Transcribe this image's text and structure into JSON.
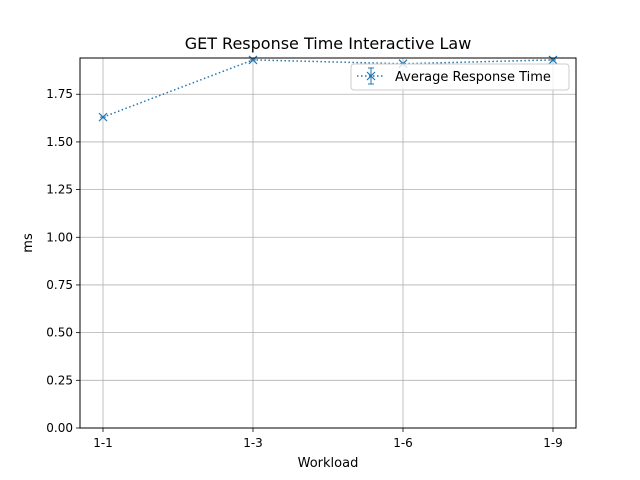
{
  "chart_data": {
    "type": "line",
    "title": "GET Response Time Interactive Law",
    "xlabel": "Workload",
    "ylabel": "ms",
    "categories": [
      "1-1",
      "1-3",
      "1-6",
      "1-9"
    ],
    "series": [
      {
        "name": "Average Response Time",
        "values": [
          1.63,
          1.93,
          1.91,
          1.93
        ],
        "color": "#1f77b4",
        "line_style": "dotted",
        "marker": "x"
      }
    ],
    "ylim": [
      0,
      1.94
    ],
    "yticks": [
      "0.00",
      "0.25",
      "0.50",
      "0.75",
      "1.00",
      "1.25",
      "1.50",
      "1.75"
    ],
    "grid": true,
    "legend_position": "upper-right"
  }
}
